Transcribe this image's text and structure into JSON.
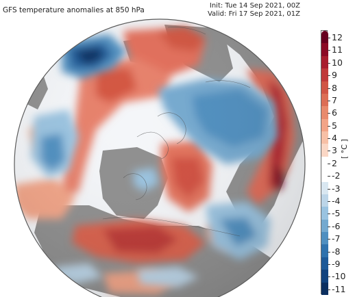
{
  "header": {
    "title": "GFS temperature anomalies at 850 hPa",
    "init": "Init: Tue 14 Sep 2021, 00Z",
    "valid": "Valid: Fri 17 Sep 2021, 01Z"
  },
  "colorbar": {
    "unit": "[ °C ]",
    "labels": [
      "12",
      "11",
      "10",
      "9",
      "8",
      "7",
      "6",
      "5",
      "4",
      "3",
      "2",
      "-2",
      "-3",
      "-4",
      "-5",
      "-6",
      "-7",
      "-8",
      "-9",
      "-10",
      "-11"
    ],
    "colors": [
      "#67001f",
      "#8b0a25",
      "#a81d2e",
      "#c0393a",
      "#d05545",
      "#dc6e55",
      "#e88a6c",
      "#f2a487",
      "#f7c0a6",
      "#fad7c5",
      "#ffffff",
      "#ffffff",
      "#d9e7f1",
      "#bcd5e8",
      "#9ac3e0",
      "#74a9cf",
      "#4f8fc0",
      "#2f72ad",
      "#1e5a98",
      "#12437e",
      "#0b2f60"
    ]
  },
  "colors": {
    "land_nodata": "#8a8a8a",
    "map_edge": "#5a5a5a"
  }
}
